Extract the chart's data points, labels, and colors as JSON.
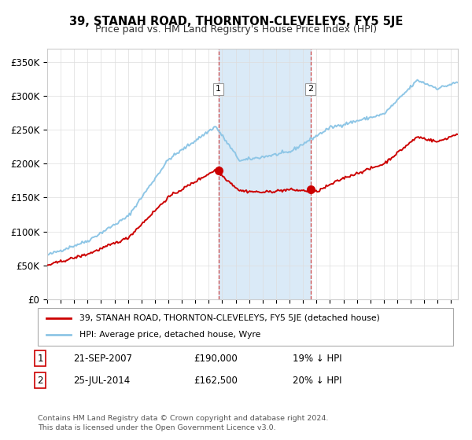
{
  "title": "39, STANAH ROAD, THORNTON-CLEVELEYS, FY5 5JE",
  "subtitle": "Price paid vs. HM Land Registry's House Price Index (HPI)",
  "ylabel_ticks": [
    "£0",
    "£50K",
    "£100K",
    "£150K",
    "£200K",
    "£250K",
    "£300K",
    "£350K"
  ],
  "ytick_values": [
    0,
    50000,
    100000,
    150000,
    200000,
    250000,
    300000,
    350000
  ],
  "ylim": [
    0,
    370000
  ],
  "hpi_color": "#8ec6e6",
  "price_color": "#cc0000",
  "shade_color": "#daeaf7",
  "marker1_date": 2007.72,
  "marker1_price": 190000,
  "marker2_date": 2014.56,
  "marker2_price": 162500,
  "legend_label1": "39, STANAH ROAD, THORNTON-CLEVELEYS, FY5 5JE (detached house)",
  "legend_label2": "HPI: Average price, detached house, Wyre",
  "footnote": "Contains HM Land Registry data © Crown copyright and database right 2024.\nThis data is licensed under the Open Government Licence v3.0.",
  "xstart": 1995.0,
  "xend": 2025.5,
  "num1_label": "1",
  "num2_label": "2",
  "ann1_date": "21-SEP-2007",
  "ann1_price": "£190,000",
  "ann1_hpi": "19% ↓ HPI",
  "ann2_date": "25-JUL-2014",
  "ann2_price": "£162,500",
  "ann2_hpi": "20% ↓ HPI"
}
